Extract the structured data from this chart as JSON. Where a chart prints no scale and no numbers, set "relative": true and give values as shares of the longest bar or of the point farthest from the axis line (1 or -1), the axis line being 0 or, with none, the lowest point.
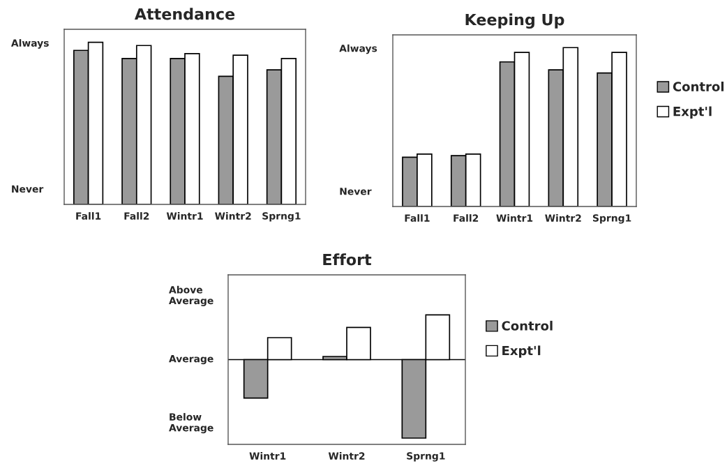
{
  "chart_data": [
    {
      "type": "bar",
      "title": "Attendance",
      "categories": [
        "Fall1",
        "Fall2",
        "Wintr1",
        "Wintr2",
        "Sprng1"
      ],
      "relative": true,
      "series": [
        {
          "color": "#9a9a9a",
          "values": [
            0.95,
            0.9,
            0.9,
            0.79,
            0.83
          ]
        },
        {
          "color": "#ffffff",
          "values": [
            1.0,
            0.98,
            0.93,
            0.92,
            0.9
          ]
        }
      ],
      "annotations": [
        "Always",
        "Never"
      ],
      "grid": false,
      "legend": false
    },
    {
      "type": "bar",
      "title": "Keeping Up",
      "categories": [
        "Fall1",
        "Fall2",
        "Wintr1",
        "Wintr2",
        "Sprng1"
      ],
      "relative": true,
      "series": [
        {
          "name": "Control",
          "color": "#9a9a9a",
          "values": [
            0.31,
            0.32,
            0.91,
            0.86,
            0.84
          ]
        },
        {
          "name": "Expt'l",
          "color": "#ffffff",
          "values": [
            0.33,
            0.33,
            0.97,
            1.0,
            0.97
          ]
        }
      ],
      "annotations": [
        "Always",
        "Never"
      ],
      "grid": false,
      "legend": "right"
    },
    {
      "type": "bar",
      "title": "Effort",
      "categories": [
        "Wintr1",
        "Wintr2",
        "Sprng1"
      ],
      "relative": true,
      "series": [
        {
          "name": "Control",
          "color": "#9a9a9a",
          "values": [
            -0.49,
            0.04,
            -1.0
          ]
        },
        {
          "name": "Expt'l",
          "color": "#ffffff",
          "values": [
            0.28,
            0.41,
            0.57
          ]
        }
      ],
      "annotations": [
        "Above\nAverage",
        "Average",
        "Below\nAverage"
      ],
      "ref_lines": [
        {
          "axis": "y",
          "value": 0,
          "color": "#000000"
        }
      ],
      "grid": false,
      "legend": "right"
    }
  ]
}
